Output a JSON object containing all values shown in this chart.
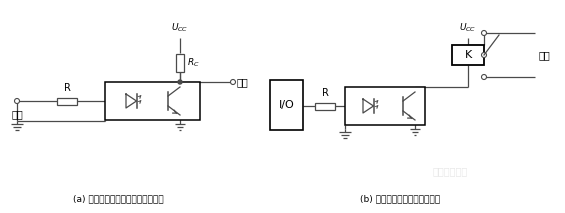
{
  "bg_color": "#ffffff",
  "line_color": "#4a4a4a",
  "title_a": "(a) 外部输入信号与内部电路的隔离",
  "title_b": "(b) 输出信号与外部电路的隔离",
  "label_input_a": "输入",
  "label_output_a": "输出",
  "label_output_b": "输出",
  "label_R_a": "R",
  "label_Rc": "$R_C$",
  "label_Ucc_a": "$U_{CC}$",
  "label_Ucc_b": "$U_{CC}$",
  "label_R_b": "R",
  "label_K": "K",
  "label_IO": "I/O",
  "watermark": "电工技术之家"
}
